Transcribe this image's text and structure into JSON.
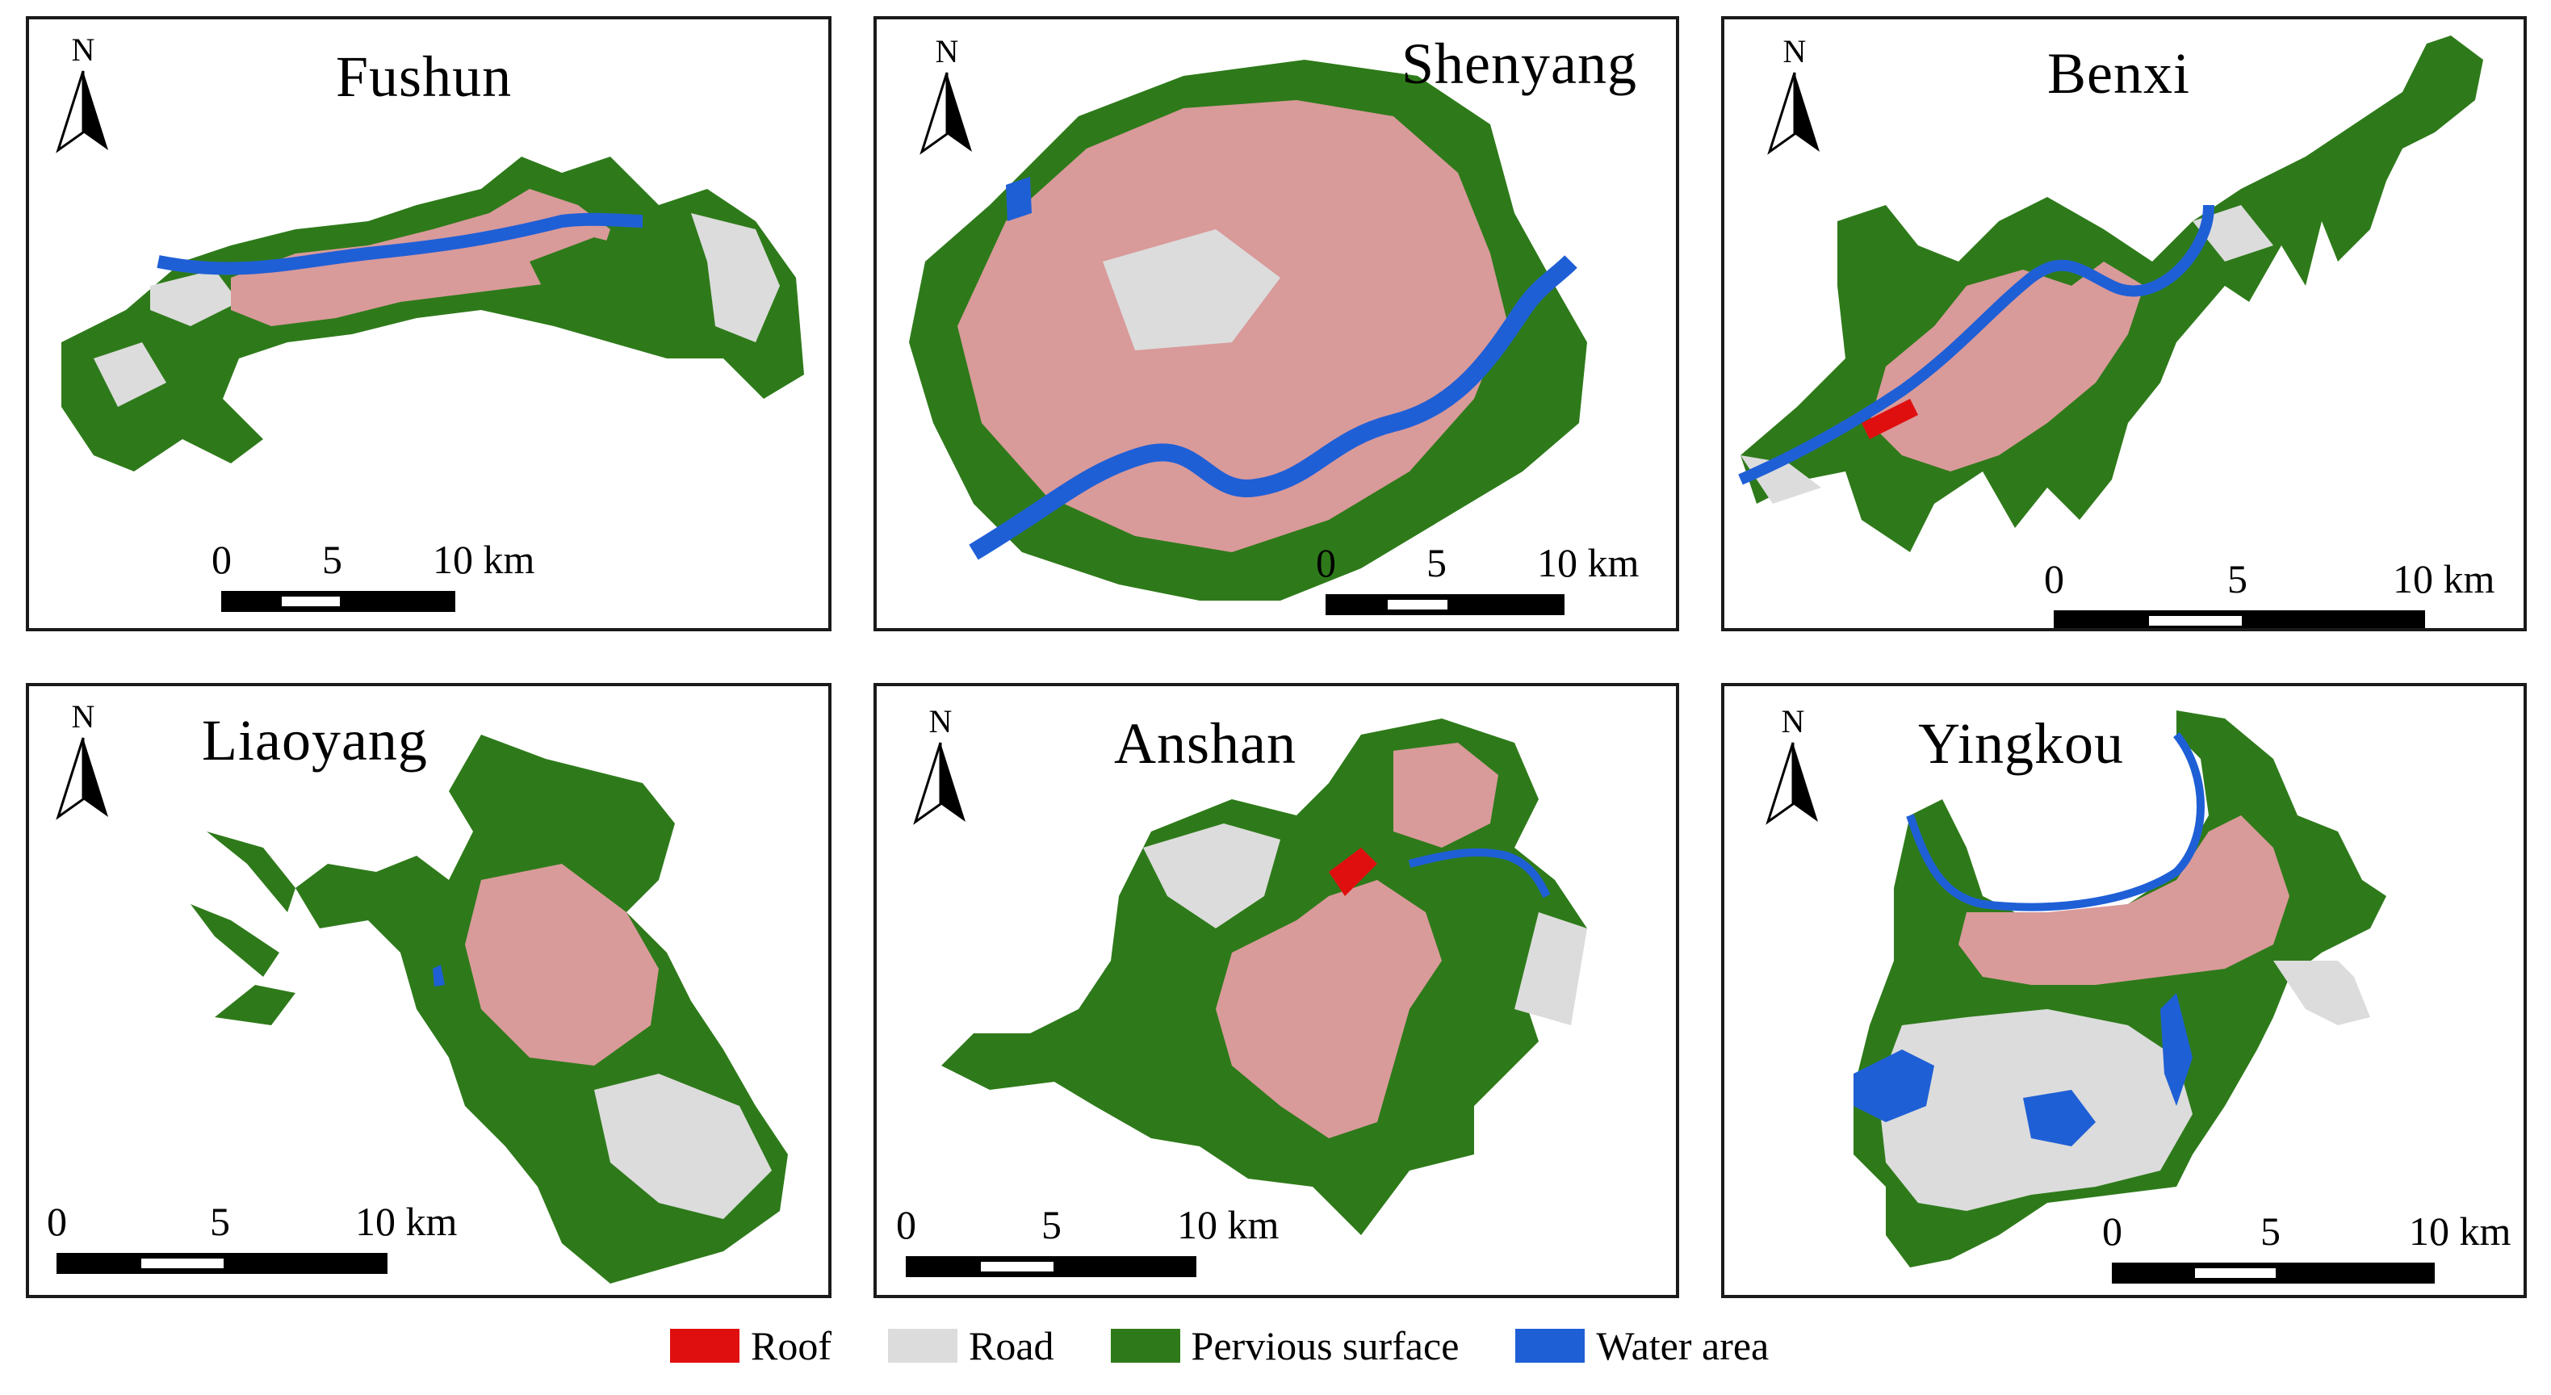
{
  "colors": {
    "roof": "#e00f0f",
    "road": "#dcdcdc",
    "pervious": "#2e7a1a",
    "water": "#1f5fd6",
    "urban_mix": "#d99a9a",
    "frame": "#1a1a1a"
  },
  "north_label": "N",
  "scale_labels": {
    "zero": "0",
    "five": "5",
    "ten": "10 km"
  },
  "panels": [
    {
      "title": "Fushun"
    },
    {
      "title": "Shenyang"
    },
    {
      "title": "Benxi"
    },
    {
      "title": "Liaoyang"
    },
    {
      "title": "Anshan"
    },
    {
      "title": "Yingkou"
    }
  ],
  "legend": [
    {
      "label": "Roof",
      "color": "#e00f0f"
    },
    {
      "label": "Road",
      "color": "#dcdcdc"
    },
    {
      "label": "Pervious surface",
      "color": "#2e7a1a"
    },
    {
      "label": "Water area",
      "color": "#1f5fd6"
    }
  ]
}
